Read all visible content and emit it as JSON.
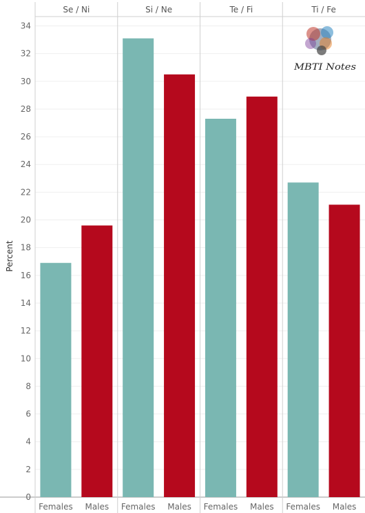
{
  "chart_data": {
    "type": "bar",
    "ylabel": "Percent",
    "ylim": [
      0,
      35
    ],
    "yticks": [
      0,
      2,
      4,
      6,
      8,
      10,
      12,
      14,
      16,
      18,
      20,
      22,
      24,
      26,
      28,
      30,
      32,
      34
    ],
    "panels": [
      {
        "title": "Se / Ni",
        "categories": [
          "Females",
          "Males"
        ],
        "values": [
          16.9,
          19.6
        ]
      },
      {
        "title": "Si / Ne",
        "categories": [
          "Females",
          "Males"
        ],
        "values": [
          33.1,
          30.5
        ]
      },
      {
        "title": "Te / Fi",
        "categories": [
          "Females",
          "Males"
        ],
        "values": [
          27.3,
          28.9
        ]
      },
      {
        "title": "Ti / Fe",
        "categories": [
          "Females",
          "Males"
        ],
        "values": [
          22.7,
          21.1
        ]
      }
    ],
    "colors": {
      "Females": "#7ab7b2",
      "Males": "#b5091d"
    },
    "grid": true,
    "legend": "none"
  },
  "logo": {
    "text": "MBTI Notes"
  }
}
